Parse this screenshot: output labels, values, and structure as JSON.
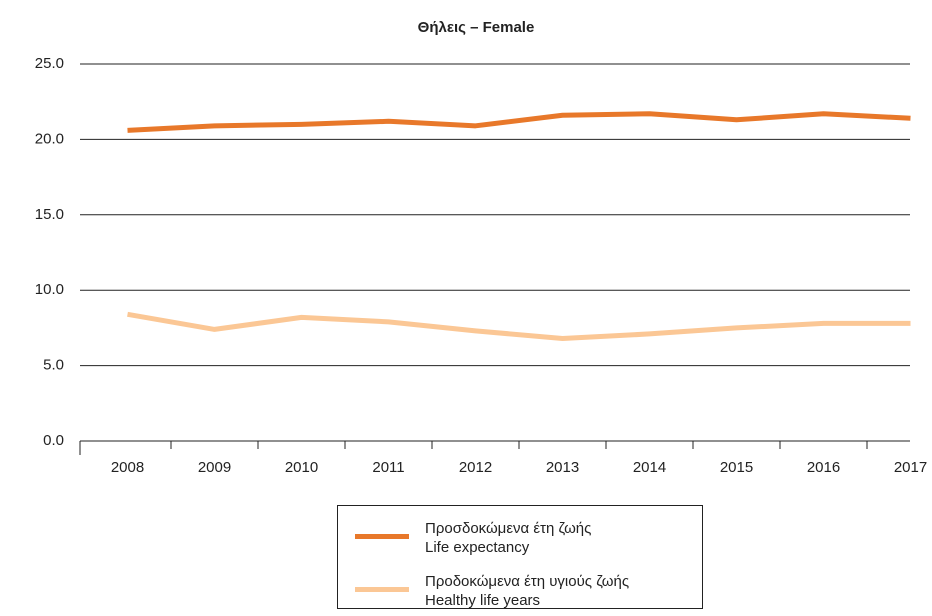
{
  "chart_data": {
    "type": "line",
    "title": "Θήλεις – Female",
    "categories": [
      "2008",
      "2009",
      "2010",
      "2011",
      "2012",
      "2013",
      "2014",
      "2015",
      "2016",
      "2017"
    ],
    "series": [
      {
        "name": "Προσδοκώμενα έτη ζωής\nLife expectancy",
        "color": "#e8782a",
        "values": [
          20.6,
          20.9,
          21.0,
          21.2,
          20.9,
          21.6,
          21.7,
          21.3,
          21.7,
          21.4
        ]
      },
      {
        "name": "Προδοκώμενα έτη υγιούς ζωής\nHealthy life years",
        "color": "#fbc795",
        "values": [
          8.4,
          7.4,
          8.2,
          7.9,
          7.3,
          6.8,
          7.1,
          7.5,
          7.8,
          7.8
        ]
      }
    ],
    "ylim": [
      0,
      25
    ],
    "yticks": [
      {
        "value": 0,
        "label": "0.0"
      },
      {
        "value": 5,
        "label": "5.0"
      },
      {
        "value": 10,
        "label": "10.0"
      },
      {
        "value": 15,
        "label": "15.0"
      },
      {
        "value": 20,
        "label": "20.0"
      },
      {
        "value": 25,
        "label": "25.0"
      }
    ],
    "grid": true
  }
}
